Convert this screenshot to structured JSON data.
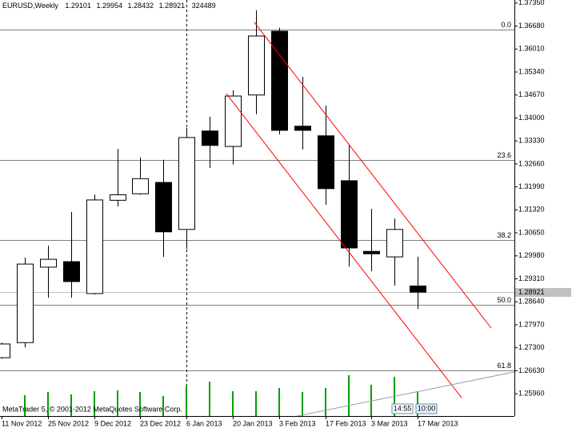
{
  "chart_data": {
    "type": "candlestick",
    "symbol": "EURUSD,Weekly",
    "categories": [
      "11 Nov 2012",
      null,
      "25 Nov 2012",
      null,
      "9 Dec 2012",
      null,
      "23 Dec 2012",
      null,
      "6 Jan 2013",
      null,
      "20 Jan 2013",
      null,
      "3 Feb 2013",
      null,
      "17 Feb 2013",
      null,
      "3 Mar 2013",
      null,
      "17 Mar 2013"
    ],
    "open": [
      1.2701,
      1.2745,
      1.2965,
      1.2981,
      1.2888,
      1.316,
      1.3179,
      1.3212,
      1.3075,
      1.3362,
      1.3317,
      1.3467,
      1.3653,
      1.3376,
      1.3348,
      1.3217,
      1.3011,
      1.2995,
      1.29101
    ],
    "high": [
      1.2745,
      1.2993,
      1.3028,
      1.3126,
      1.3177,
      1.331,
      1.3285,
      1.3278,
      1.3371,
      1.3404,
      1.3481,
      1.3714,
      1.3663,
      1.352,
      1.3436,
      1.332,
      1.3135,
      1.3107,
      1.29954
    ],
    "low": [
      1.2698,
      1.2731,
      1.2876,
      1.2876,
      1.2885,
      1.3142,
      1.3176,
      1.2995,
      1.3018,
      1.3254,
      1.3264,
      1.3411,
      1.3352,
      1.3308,
      1.3147,
      1.2967,
      1.2953,
      1.2911,
      1.28432
    ],
    "close": [
      1.2741,
      1.2974,
      1.2988,
      1.2923,
      1.3161,
      1.3176,
      1.3223,
      1.3068,
      1.3343,
      1.332,
      1.3464,
      1.3639,
      1.3364,
      1.3364,
      1.3194,
      1.3021,
      1.3004,
      1.3075,
      1.28921
    ],
    "volume": [
      null,
      272000,
      314000,
      283000,
      324000,
      335000,
      314000,
      262000,
      398000,
      450000,
      324000,
      324000,
      366000,
      314000,
      366000,
      534000,
      408000,
      513000,
      324489
    ],
    "up_color": "#ffffff",
    "down_color": "#000000",
    "volume_color": "#00a000",
    "ylim": [
      1.2531,
      1.3744
    ],
    "yticks": [
      {
        "value": 1.3735,
        "label": "1.37350"
      },
      {
        "value": 1.3668,
        "label": "1.36680"
      },
      {
        "value": 1.3601,
        "label": "1.36010"
      },
      {
        "value": 1.3534,
        "label": "1.35340"
      },
      {
        "value": 1.3467,
        "label": "1.34670"
      },
      {
        "value": 1.34,
        "label": "1.34000"
      },
      {
        "value": 1.3333,
        "label": "1.33330"
      },
      {
        "value": 1.3266,
        "label": "1.32660"
      },
      {
        "value": 1.3199,
        "label": "1.31990"
      },
      {
        "value": 1.3132,
        "label": "1.31320"
      },
      {
        "value": 1.3065,
        "label": "1.30650"
      },
      {
        "value": 1.2998,
        "label": "1.29980"
      },
      {
        "value": 1.2931,
        "label": "1.29310"
      },
      {
        "value": 1.2864,
        "label": "1.28640"
      },
      {
        "value": 1.2797,
        "label": "1.27970"
      },
      {
        "value": 1.273,
        "label": "1.27300"
      },
      {
        "value": 1.2663,
        "label": "1.26630"
      },
      {
        "value": 1.2596,
        "label": "1.25960"
      }
    ],
    "fib_levels": [
      {
        "label": "0.0",
        "price": 1.3658
      },
      {
        "label": "23.6",
        "price": 1.3278
      },
      {
        "label": "38.2",
        "price": 1.3044
      },
      {
        "label": "50.0",
        "price": 1.2855
      },
      {
        "label": "61.8",
        "price": 1.2664
      }
    ],
    "fib_color": "#808080",
    "trend_lines": [
      {
        "color": "#ff0000",
        "points": [
          [
            10.93,
            1.3679
          ],
          [
            21.18,
            1.2787
          ]
        ]
      },
      {
        "color": "#ff0000",
        "points": [
          [
            9.72,
            1.3471
          ],
          [
            19.9,
            1.2584
          ]
        ]
      },
      {
        "color": "#8aa0b8",
        "points": [
          [
            12.73,
            1.253
          ],
          [
            24.84,
            1.2696
          ]
        ]
      }
    ],
    "vertical_line_index": 8,
    "copyright": "MetaTrader 5, © 2001-2012 MetaQuotes Software Corp.",
    "time_boxes": [
      "14:55",
      "10:00"
    ]
  }
}
